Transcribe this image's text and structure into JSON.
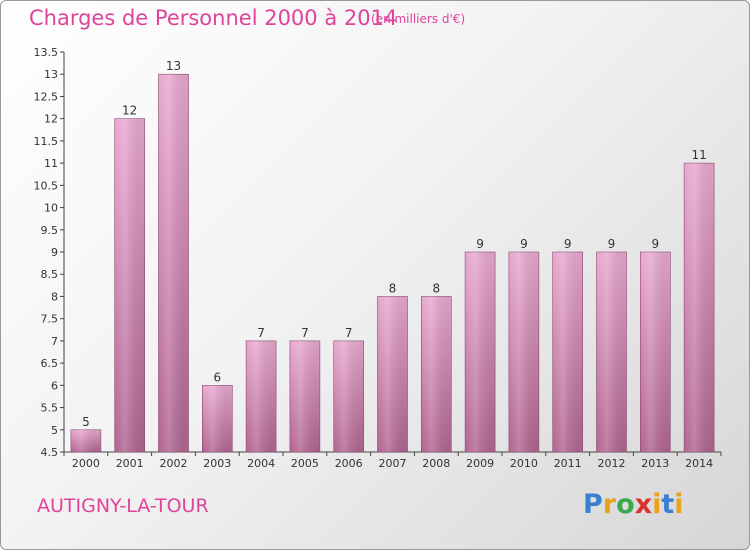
{
  "header": {
    "title": "Charges de Personnel 2000 à 2014",
    "subtitle": "(en milliers d'€)"
  },
  "footer": {
    "place": "AUTIGNY-LA-TOUR",
    "logo_text": "Proxiti"
  },
  "colors": {
    "title": "#e0439b",
    "bar_top": "#e8a8cf",
    "bar_bottom": "#b0648f"
  },
  "chart_data": {
    "type": "bar",
    "title": "Charges de Personnel 2000 à 2014",
    "subtitle": "(en milliers d'€)",
    "xlabel": "",
    "ylabel": "",
    "categories": [
      "2000",
      "2001",
      "2002",
      "2003",
      "2004",
      "2005",
      "2006",
      "2007",
      "2008",
      "2009",
      "2010",
      "2011",
      "2012",
      "2013",
      "2014"
    ],
    "values": [
      5,
      12,
      13,
      6,
      7,
      7,
      7,
      8,
      8,
      9,
      9,
      9,
      9,
      9,
      11
    ],
    "value_labels": [
      "5",
      "12",
      "13",
      "6",
      "7",
      "7",
      "7",
      "8",
      "8",
      "9",
      "9",
      "9",
      "9",
      "9",
      "11"
    ],
    "ylim": [
      4.5,
      13.5
    ],
    "yticks": [
      "4.5",
      "5",
      "5.5",
      "6",
      "6.5",
      "7",
      "7.5",
      "8",
      "8.5",
      "9",
      "9.5",
      "10",
      "10.5",
      "11",
      "11.5",
      "12",
      "12.5",
      "13",
      "13.5"
    ],
    "grid": false,
    "legend": "none"
  }
}
